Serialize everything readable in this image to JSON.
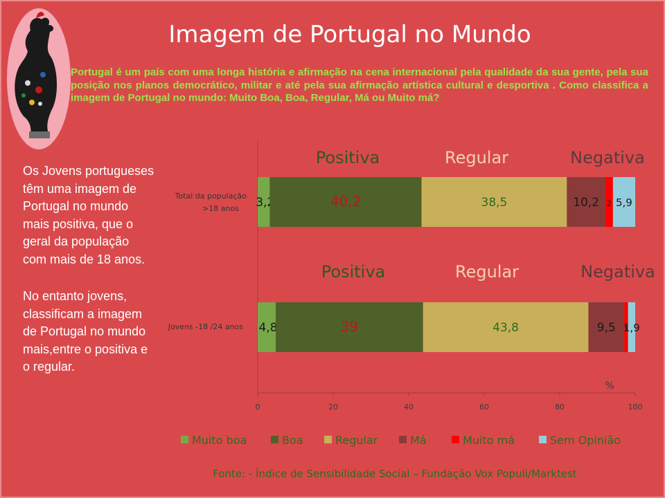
{
  "title": "Imagem de Portugal no Mundo",
  "intro": "Portugal é um país com uma longa história e afirmação na cena internacional pela qualidade da sua gente, pela sua posição nos planos democrático, militar e até pela sua afirmação artística cultural e desportiva .  Como classifica a imagem de Portugal no mundo:  Muito Boa, Boa, Regular, Má ou Muito má?",
  "left_text": {
    "p1": "Os Jovens portugueses têm uma imagem de Portugal no mundo mais positiva, que o geral da população com mais de 18 anos.",
    "p2": "No entanto jovens, classificam a imagem de Portugal no mundo mais,entre o positiva e o regular."
  },
  "source": "Fonte: - Índice de Sensibilidade Social – Fundação Vox Populi/Marktest",
  "colors": {
    "background": "#d9494c",
    "Muito boa": "#77a84a",
    "Boa": "#4d6128",
    "Regular": "#c8b05a",
    "Má": "#8b3a3a",
    "Muito má": "#ff0000",
    "Sem Opinião": "#93cddd"
  },
  "chart_data": {
    "type": "bar",
    "orientation": "horizontal",
    "stacked": true,
    "categories": [
      "Total  da população >18 anos",
      "Jovens -18 /24 anos"
    ],
    "series": [
      {
        "name": "Muito boa",
        "values": [
          3.2,
          4.8
        ],
        "labels": [
          "3,2",
          "4,8"
        ]
      },
      {
        "name": "Boa",
        "values": [
          40.2,
          39
        ],
        "labels": [
          "40,2",
          "39"
        ]
      },
      {
        "name": "Regular",
        "values": [
          38.5,
          43.8
        ],
        "labels": [
          "38,5",
          "43,8"
        ]
      },
      {
        "name": "Má",
        "values": [
          10.2,
          9.5
        ],
        "labels": [
          "10,2",
          "9,5"
        ]
      },
      {
        "name": "Muito má",
        "values": [
          2,
          1
        ],
        "labels": [
          "2",
          "1"
        ]
      },
      {
        "name": "Sem Opinião",
        "values": [
          5.9,
          1.9
        ],
        "labels": [
          "5,9",
          "1,9"
        ]
      }
    ],
    "group_labels": [
      "Positiva",
      "Regular",
      "Negativa"
    ],
    "xlim": [
      0,
      100
    ],
    "xticks": [
      0,
      20,
      40,
      60,
      80,
      100
    ],
    "xlabel": "%",
    "legend_position": "bottom",
    "grid": false
  }
}
